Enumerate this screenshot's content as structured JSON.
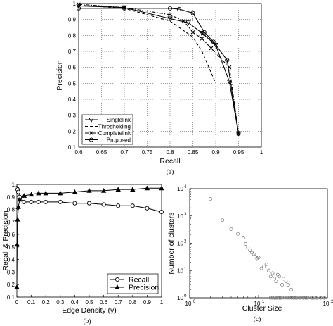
{
  "chart_data": [
    {
      "id": "a",
      "type": "line",
      "caption": "(a)",
      "xlabel": "Recall",
      "ylabel": "Precision",
      "xlim": [
        0.6,
        1
      ],
      "ylim": [
        0.1,
        1
      ],
      "xticks": [
        "0.6",
        "0.65",
        "0.7",
        "0.75",
        "0.8",
        "0.85",
        "0.9",
        "0.95",
        "1"
      ],
      "yticks": [
        "0.1",
        "0.2",
        "0.3",
        "0.4",
        "0.5",
        "0.6",
        "0.7",
        "0.8",
        "0.9",
        "1"
      ],
      "grid": true,
      "legend_position": "bottom-left",
      "series": [
        {
          "name": "Singlelink",
          "marker": "triangle-down",
          "dash": "solid",
          "x": [
            0.6,
            0.7,
            0.8,
            0.84,
            0.87,
            0.9,
            0.93,
            0.95
          ],
          "y": [
            0.985,
            0.975,
            0.905,
            0.88,
            0.815,
            0.74,
            0.51,
            0.185
          ]
        },
        {
          "name": "Thresholding",
          "marker": "none",
          "dash": "dashed",
          "x": [
            0.6,
            0.7,
            0.8,
            0.85,
            0.87,
            0.9
          ],
          "y": [
            0.99,
            0.97,
            0.89,
            0.79,
            0.7,
            0.5
          ]
        },
        {
          "name": "Completelink",
          "marker": "x",
          "dash": "dashdot",
          "x": [
            0.6,
            0.7,
            0.8,
            0.83,
            0.85,
            0.87,
            0.89,
            0.93,
            0.95
          ],
          "y": [
            0.995,
            0.975,
            0.93,
            0.89,
            0.82,
            0.78,
            0.72,
            0.6,
            0.185
          ]
        },
        {
          "name": "Proposed",
          "marker": "circle",
          "dash": "solid",
          "x": [
            0.6,
            0.7,
            0.8,
            0.82,
            0.85,
            0.875,
            0.895,
            0.925,
            0.95
          ],
          "y": [
            0.97,
            0.97,
            0.97,
            0.965,
            0.94,
            0.82,
            0.76,
            0.645,
            0.185
          ]
        }
      ]
    },
    {
      "id": "b",
      "type": "line",
      "caption": "(b)",
      "xlabel": "Edge Density (γ)",
      "ylabel": "Recall & Precision",
      "xlim": [
        0,
        1
      ],
      "ylim": [
        0.1,
        1
      ],
      "xticks": [
        "0",
        "0.1",
        "0.2",
        "0.3",
        "0.4",
        "0.5",
        "0.6",
        "0.7",
        "0.8",
        "0.9",
        "1"
      ],
      "yticks": [
        "0.1",
        "0.2",
        "0.3",
        "0.4",
        "0.5",
        "0.6",
        "0.7",
        "0.8",
        "0.9",
        "1"
      ],
      "grid": false,
      "legend_position": "bottom-right",
      "series": [
        {
          "name": "Recall",
          "marker": "circle",
          "x": [
            0,
            0.005,
            0.01,
            0.02,
            0.05,
            0.1,
            0.15,
            0.2,
            0.3,
            0.4,
            0.5,
            0.6,
            0.7,
            0.8,
            0.9,
            1
          ],
          "y": [
            0.97,
            0.96,
            0.94,
            0.9,
            0.86,
            0.86,
            0.86,
            0.86,
            0.86,
            0.85,
            0.85,
            0.84,
            0.83,
            0.83,
            0.81,
            0.78
          ]
        },
        {
          "name": "Precision",
          "marker": "triangle-up",
          "x": [
            0,
            0.002,
            0.005,
            0.01,
            0.02,
            0.05,
            0.1,
            0.15,
            0.2,
            0.3,
            0.4,
            0.5,
            0.6,
            0.7,
            0.8,
            0.9,
            1
          ],
          "y": [
            0.18,
            0.52,
            0.72,
            0.82,
            0.88,
            0.91,
            0.92,
            0.93,
            0.93,
            0.93,
            0.94,
            0.95,
            0.95,
            0.96,
            0.96,
            0.97,
            0.97
          ]
        }
      ]
    },
    {
      "id": "c",
      "type": "scatter",
      "caption": "(c)",
      "xlabel": "Cluster Size",
      "ylabel": "Number of clusters",
      "xscale": "log",
      "yscale": "log",
      "xlim": [
        1,
        100
      ],
      "ylim": [
        1,
        10000
      ],
      "xtick_exponents": [
        "0",
        "1",
        "2"
      ],
      "ytick_exponents": [
        "0",
        "1",
        "2",
        "3",
        "4"
      ],
      "grid": false,
      "series": [
        {
          "marker": "circle-open",
          "x": [
            2,
            3,
            4,
            5,
            6,
            6.5,
            7,
            7.5,
            8,
            8.5,
            9,
            9.5,
            10,
            11,
            12,
            13,
            14,
            15,
            16,
            17,
            18,
            19,
            20,
            22,
            23,
            25,
            27,
            30,
            33,
            36,
            40,
            45,
            50,
            60,
            70,
            80,
            90
          ],
          "y": [
            4200,
            700,
            330,
            220,
            160,
            95,
            70,
            55,
            45,
            40,
            32,
            28,
            30,
            12,
            14,
            17,
            10,
            6,
            8,
            5,
            4,
            7,
            6,
            3,
            5,
            4,
            3,
            2,
            1,
            1,
            1,
            1,
            1,
            1,
            1,
            1,
            1
          ]
        },
        {
          "marker": "circle-open",
          "x": [
            15,
            16,
            17,
            18,
            19,
            20,
            21,
            22,
            24,
            26,
            28,
            30,
            32,
            35,
            40,
            44,
            48,
            52,
            58,
            64,
            70,
            80
          ],
          "y": [
            1,
            1,
            1,
            1,
            1,
            1,
            1,
            1,
            1,
            1,
            1,
            1,
            1,
            1,
            1,
            1,
            1,
            1,
            1,
            1,
            1,
            1
          ]
        }
      ]
    }
  ]
}
